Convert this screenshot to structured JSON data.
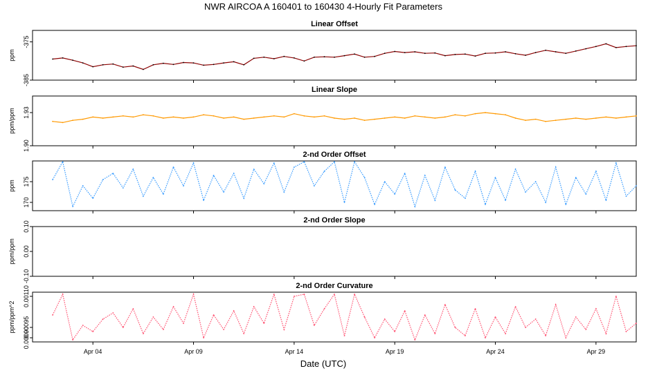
{
  "title": "NWR   AIRCOA A   160401 to 160430   4-Hourly Fit Parameters",
  "xlabel": "Date (UTC)",
  "x_ticks": [
    "Apr 04",
    "Apr 09",
    "Apr 14",
    "Apr 19",
    "Apr 24",
    "Apr 29"
  ],
  "chart_data": [
    {
      "type": "line",
      "title": "Linear Offset",
      "ylabel": "ppm",
      "color": "#8b0000",
      "ylim": [
        -385,
        -372
      ],
      "ytick_values": [
        -385,
        -375
      ],
      "ytick_labels": [
        "-385",
        "-375"
      ],
      "xlim": [
        1,
        31
      ],
      "x": [
        2.0,
        2.5,
        3.0,
        3.5,
        4.0,
        4.5,
        5.0,
        5.5,
        6.0,
        6.5,
        7.0,
        7.5,
        8.0,
        8.5,
        9.0,
        9.5,
        10.0,
        10.5,
        11.0,
        11.5,
        12.0,
        12.5,
        13.0,
        13.5,
        14.0,
        14.5,
        15.0,
        15.5,
        16.0,
        16.5,
        17.0,
        17.5,
        18.0,
        18.5,
        19.0,
        19.5,
        20.0,
        20.5,
        21.0,
        21.5,
        22.0,
        22.5,
        23.0,
        23.5,
        24.0,
        24.5,
        25.0,
        25.5,
        26.0,
        26.5,
        27.0,
        27.5,
        28.0,
        28.5,
        29.0,
        29.5,
        30.0,
        30.5,
        31.0
      ],
      "y": [
        -379.5,
        -379.2,
        -379.8,
        -380.5,
        -381.5,
        -381.0,
        -380.8,
        -381.6,
        -381.3,
        -382.2,
        -381.0,
        -380.6,
        -380.9,
        -380.4,
        -380.5,
        -381.1,
        -380.9,
        -380.5,
        -380.2,
        -381.0,
        -379.3,
        -379.0,
        -379.4,
        -378.8,
        -379.2,
        -380.0,
        -379.0,
        -378.9,
        -379.0,
        -378.6,
        -378.2,
        -379.0,
        -378.8,
        -378.0,
        -377.5,
        -377.8,
        -377.6,
        -378.0,
        -377.9,
        -378.6,
        -378.3,
        -378.2,
        -378.7,
        -378.0,
        -377.9,
        -377.6,
        -378.1,
        -378.5,
        -377.8,
        -377.2,
        -377.6,
        -378.0,
        -377.4,
        -376.8,
        -376.2,
        -375.5,
        -376.5,
        -376.2,
        -376.0
      ]
    },
    {
      "type": "line",
      "title": "Linear Slope",
      "ylabel": "ppm/ppm",
      "color": "#ff9900",
      "ylim": [
        1.9,
        1.945
      ],
      "ytick_values": [
        1.9,
        1.93
      ],
      "ytick_labels": [
        "1.90",
        "1.93"
      ],
      "xlim": [
        1,
        31
      ],
      "x": [
        2.0,
        2.5,
        3.0,
        3.5,
        4.0,
        4.5,
        5.0,
        5.5,
        6.0,
        6.5,
        7.0,
        7.5,
        8.0,
        8.5,
        9.0,
        9.5,
        10.0,
        10.5,
        11.0,
        11.5,
        12.0,
        12.5,
        13.0,
        13.5,
        14.0,
        14.5,
        15.0,
        15.5,
        16.0,
        16.5,
        17.0,
        17.5,
        18.0,
        18.5,
        19.0,
        19.5,
        20.0,
        20.5,
        21.0,
        21.5,
        22.0,
        22.5,
        23.0,
        23.5,
        24.0,
        24.5,
        25.0,
        25.5,
        26.0,
        26.5,
        27.0,
        27.5,
        28.0,
        28.5,
        29.0,
        29.5,
        30.0,
        30.5,
        31.0
      ],
      "y": [
        1.922,
        1.921,
        1.923,
        1.924,
        1.926,
        1.925,
        1.926,
        1.927,
        1.926,
        1.928,
        1.927,
        1.925,
        1.926,
        1.925,
        1.926,
        1.928,
        1.927,
        1.925,
        1.926,
        1.924,
        1.925,
        1.926,
        1.927,
        1.926,
        1.929,
        1.927,
        1.926,
        1.927,
        1.925,
        1.924,
        1.925,
        1.923,
        1.924,
        1.925,
        1.926,
        1.925,
        1.927,
        1.926,
        1.925,
        1.926,
        1.928,
        1.927,
        1.929,
        1.93,
        1.929,
        1.928,
        1.925,
        1.923,
        1.924,
        1.922,
        1.923,
        1.924,
        1.925,
        1.924,
        1.925,
        1.926,
        1.925,
        1.926,
        1.927
      ]
    },
    {
      "type": "line",
      "title": "2-nd Order Offset",
      "ylabel": "ppm",
      "color": "#3399ff",
      "ylim": [
        168,
        180
      ],
      "ytick_values": [
        170,
        175
      ],
      "ytick_labels": [
        "170",
        "175"
      ],
      "xlim": [
        1,
        31
      ],
      "x": [
        2.0,
        2.5,
        3.0,
        3.5,
        4.0,
        4.5,
        5.0,
        5.5,
        6.0,
        6.5,
        7.0,
        7.5,
        8.0,
        8.5,
        9.0,
        9.5,
        10.0,
        10.5,
        11.0,
        11.5,
        12.0,
        12.5,
        13.0,
        13.5,
        14.0,
        14.5,
        15.0,
        15.5,
        16.0,
        16.5,
        17.0,
        17.5,
        18.0,
        18.5,
        19.0,
        19.5,
        20.0,
        20.5,
        21.0,
        21.5,
        22.0,
        22.5,
        23.0,
        23.5,
        24.0,
        24.5,
        25.0,
        25.5,
        26.0,
        26.5,
        27.0,
        27.5,
        28.0,
        28.5,
        29.0,
        29.5,
        30.0,
        30.5,
        31.0
      ],
      "y": [
        175.5,
        179.8,
        169.0,
        174.0,
        171.0,
        175.5,
        177.0,
        173.5,
        178.0,
        171.5,
        176.0,
        172.0,
        178.5,
        174.0,
        179.5,
        170.5,
        176.5,
        172.5,
        177.0,
        171.0,
        178.0,
        174.5,
        179.5,
        172.5,
        178.5,
        179.8,
        174.0,
        177.5,
        179.8,
        170.0,
        179.8,
        176.0,
        169.5,
        175.0,
        172.0,
        177.0,
        169.0,
        176.5,
        170.5,
        178.5,
        173.0,
        171.0,
        177.5,
        169.5,
        176.0,
        170.5,
        178.0,
        172.5,
        175.0,
        170.0,
        178.5,
        169.5,
        176.0,
        172.0,
        177.5,
        170.5,
        179.5,
        171.5,
        174.0
      ]
    },
    {
      "type": "line",
      "title": "2-nd Order Slope",
      "ylabel": "ppm/ppm",
      "color": "#999999",
      "ylim": [
        -0.1,
        0.1
      ],
      "ytick_values": [
        -0.1,
        0.0,
        0.1
      ],
      "ytick_labels": [
        "-0.10",
        "0.00",
        "0.10"
      ],
      "xlim": [
        1,
        31
      ],
      "x": [],
      "y": []
    },
    {
      "type": "line",
      "title": "2-nd Order Curvature",
      "ylabel": "ppm/ppm^2",
      "color": "#ff4d6d",
      "ylim": [
        0.00088,
        0.00112
      ],
      "ytick_values": [
        0.0009,
        0.00095,
        0.0011
      ],
      "ytick_labels": [
        "0.00090",
        "0.00095",
        "0.00110"
      ],
      "xlim": [
        1,
        31
      ],
      "x": [
        2.0,
        2.5,
        3.0,
        3.5,
        4.0,
        4.5,
        5.0,
        5.5,
        6.0,
        6.5,
        7.0,
        7.5,
        8.0,
        8.5,
        9.0,
        9.5,
        10.0,
        10.5,
        11.0,
        11.5,
        12.0,
        12.5,
        13.0,
        13.5,
        14.0,
        14.5,
        15.0,
        15.5,
        16.0,
        16.5,
        17.0,
        17.5,
        18.0,
        18.5,
        19.0,
        19.5,
        20.0,
        20.5,
        21.0,
        21.5,
        22.0,
        22.5,
        23.0,
        23.5,
        24.0,
        24.5,
        25.0,
        25.5,
        26.0,
        26.5,
        27.0,
        27.5,
        28.0,
        28.5,
        29.0,
        29.5,
        30.0,
        30.5,
        31.0
      ],
      "y": [
        0.00101,
        0.00111,
        0.00089,
        0.00096,
        0.00093,
        0.00099,
        0.00102,
        0.00095,
        0.00104,
        0.00092,
        0.001,
        0.00094,
        0.00105,
        0.00097,
        0.00111,
        0.0009,
        0.00101,
        0.00094,
        0.00103,
        0.00092,
        0.00105,
        0.00097,
        0.00111,
        0.00094,
        0.0011,
        0.00111,
        0.00096,
        0.00104,
        0.00111,
        0.00091,
        0.00111,
        0.001,
        0.0009,
        0.00099,
        0.00093,
        0.00103,
        0.00089,
        0.00101,
        0.00092,
        0.00106,
        0.00095,
        0.00091,
        0.00104,
        0.0009,
        0.001,
        0.00092,
        0.00105,
        0.00095,
        0.00099,
        0.00091,
        0.00106,
        0.0009,
        0.001,
        0.00094,
        0.00104,
        0.00092,
        0.0011,
        0.00093,
        0.00097
      ]
    }
  ]
}
